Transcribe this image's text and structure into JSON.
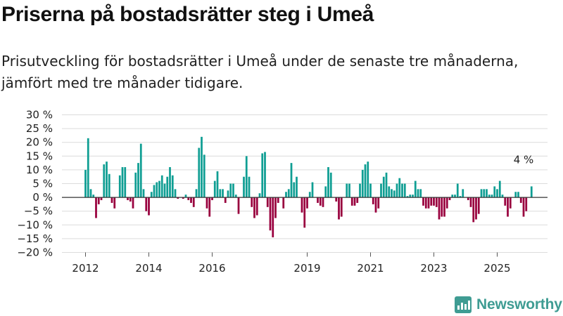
{
  "title": "Priserna på bostadsrätter steg i Umeå",
  "subtitle": "Prisutveckling för bostadsrätter i Umeå under de senaste tre månaderna, jämfört med tre månader tidigare.",
  "brand": {
    "name": "Newsworthy",
    "color": "#3f9c93",
    "icon": "newsworthy-logo-icon"
  },
  "colors": {
    "positive": "#0f9e93",
    "negative": "#99003e",
    "grid": "#dcdcdc",
    "zero_line": "#333333"
  },
  "chart_data": {
    "type": "bar",
    "unit": "%",
    "ylim": [
      -20,
      30
    ],
    "y_ticks": [
      -20,
      -15,
      -10,
      -5,
      0,
      5,
      10,
      15,
      20,
      25,
      30
    ],
    "y_tick_labels": [
      "−20 %",
      "−15 %",
      "−10 %",
      "−5 %",
      "0 %",
      "5 %",
      "10 %",
      "15 %",
      "20 %",
      "25 %",
      "30 %"
    ],
    "x_ticks": [
      2012,
      2014,
      2016,
      2019,
      2021,
      2023,
      2025
    ],
    "x_tick_labels": [
      "2012",
      "2014",
      "2016",
      "2019",
      "2021",
      "2023",
      "2025"
    ],
    "start": "2012-01",
    "grid": true,
    "annotation": {
      "text": "4 %",
      "month": "2025-11",
      "value": 4
    },
    "values": [
      10,
      21.5,
      3,
      1,
      -7.5,
      -2.5,
      -1,
      12,
      13,
      8.5,
      -2,
      -4,
      0,
      8,
      11,
      11,
      -1,
      -1.5,
      -4,
      9,
      12.5,
      19.5,
      3,
      -5,
      -6.5,
      2,
      4.5,
      5.5,
      6,
      8,
      5,
      7.5,
      11,
      8,
      3,
      -0.5,
      0,
      -0.5,
      1,
      -1,
      -2,
      -3.5,
      3,
      18,
      22,
      15.5,
      -4,
      -7,
      -1,
      6,
      9.5,
      3,
      3,
      -2,
      2.5,
      5,
      5,
      1,
      -6,
      0,
      7.5,
      15,
      7.5,
      -3.5,
      -7.5,
      -6.5,
      1.5,
      16,
      16.5,
      -3.5,
      -12,
      -14.5,
      -7.5,
      -2,
      0,
      -4,
      2,
      3,
      12.5,
      5.5,
      7.5,
      0,
      -5.5,
      -11,
      -4,
      2,
      5.5,
      0,
      -2,
      -3,
      -3.5,
      4,
      11,
      9,
      0,
      -1.5,
      -8,
      -7,
      0,
      5,
      5,
      -3,
      -3,
      -2,
      5,
      10,
      12,
      13,
      5,
      -2.5,
      -5.5,
      -4,
      5,
      7.5,
      9,
      4,
      3,
      2.5,
      5,
      7,
      5,
      5,
      0.5,
      1,
      1,
      6,
      3,
      3,
      -3,
      -4,
      -4,
      -3,
      -3,
      -3.5,
      -8,
      -7,
      -7,
      -4,
      -1,
      1,
      1,
      5,
      0.5,
      3,
      0,
      -1,
      -3.5,
      -9,
      -8,
      -6,
      3,
      3,
      3,
      1,
      1,
      4,
      3,
      6,
      1,
      -3,
      -7,
      -4,
      0,
      2,
      2,
      -2,
      -7,
      -5,
      0,
      4
    ]
  }
}
